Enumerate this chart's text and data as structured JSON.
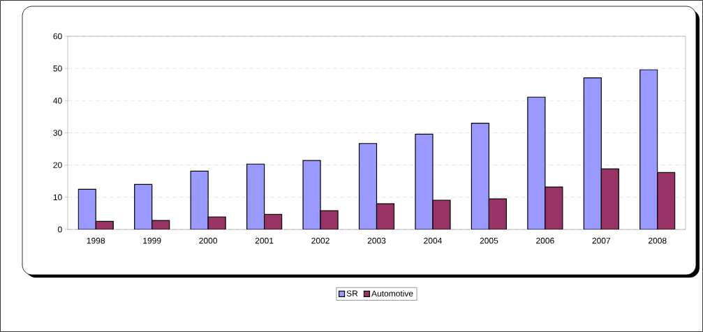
{
  "chart_data": {
    "type": "bar",
    "categories": [
      "1998",
      "1999",
      "2000",
      "2001",
      "2002",
      "2003",
      "2004",
      "2005",
      "2006",
      "2007",
      "2008"
    ],
    "series": [
      {
        "name": "SR",
        "color": "#9999ff",
        "values": [
          12.5,
          14.0,
          18.1,
          20.3,
          21.4,
          26.7,
          29.6,
          33.0,
          41.1,
          47.1,
          49.6
        ]
      },
      {
        "name": "Automotive",
        "color": "#993366",
        "values": [
          2.5,
          2.8,
          3.9,
          4.7,
          5.8,
          8.0,
          9.1,
          9.5,
          13.2,
          18.8,
          17.7
        ]
      }
    ],
    "ylim": [
      0,
      60
    ],
    "yticks": [
      0,
      10,
      20,
      30,
      40,
      50,
      60
    ],
    "grid": "y",
    "legend": "bottom"
  }
}
